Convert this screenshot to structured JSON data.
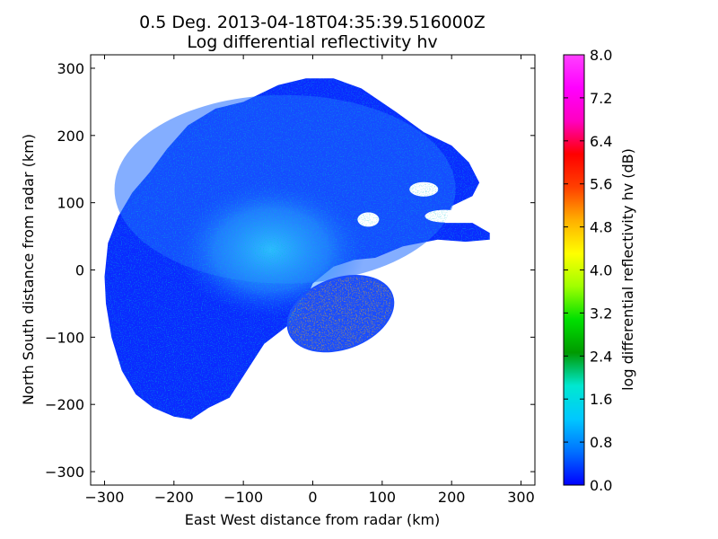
{
  "chart_data": {
    "type": "heatmap",
    "title": "0.5 Deg. 2013-04-18T04:35:39.516000Z",
    "subtitle": "Log differential reflectivity hv",
    "xlabel": "East West distance from radar (km)",
    "ylabel": "North South distance from radar (km)",
    "xlim": [
      -320,
      320
    ],
    "ylim": [
      -320,
      320
    ],
    "x_ticks": [
      -300,
      -200,
      -100,
      0,
      100,
      200,
      300
    ],
    "y_ticks": [
      -300,
      -200,
      -100,
      0,
      100,
      200,
      300
    ],
    "x_tick_labels": [
      "−300",
      "−200",
      "−100",
      "0",
      "100",
      "200",
      "300"
    ],
    "y_tick_labels": [
      "−300",
      "−200",
      "−100",
      "0",
      "100",
      "200",
      "300"
    ],
    "grid": false,
    "colorbar": {
      "label": "log differential reflectivity hv (dB)",
      "range": [
        0.0,
        8.0
      ],
      "ticks": [
        0.0,
        0.8,
        1.6,
        2.4,
        3.2,
        4.0,
        4.8,
        5.6,
        6.4,
        7.2,
        8.0
      ],
      "tick_labels": [
        "0.0",
        "0.8",
        "1.6",
        "2.4",
        "3.2",
        "4.0",
        "4.8",
        "5.6",
        "6.4",
        "7.2",
        "8.0"
      ],
      "colormap": "gist_ncar",
      "colors": [
        "#0000ff",
        "#0070ff",
        "#00c8ff",
        "#00e8d0",
        "#009a00",
        "#00e000",
        "#a0ff00",
        "#ffff00",
        "#ffb000",
        "#ff4000",
        "#ff0000",
        "#ff00c0",
        "#ff00ff",
        "#ff40ff"
      ]
    },
    "echo_regions": [
      {
        "name": "main echo",
        "center": [
          -30,
          60
        ],
        "value_range": [
          0.0,
          1.6
        ],
        "dominant": "blue"
      },
      {
        "name": "central core",
        "center": [
          -50,
          20
        ],
        "value_range": [
          0.8,
          2.0
        ],
        "dominant": "light-blue"
      },
      {
        "name": "southeast cell",
        "center": [
          40,
          -70
        ],
        "value_range": [
          0.0,
          8.0
        ],
        "dominant": "mixed"
      }
    ],
    "data_extent": {
      "x": [
        -300,
        260
      ],
      "y": [
        -225,
        290
      ]
    }
  }
}
